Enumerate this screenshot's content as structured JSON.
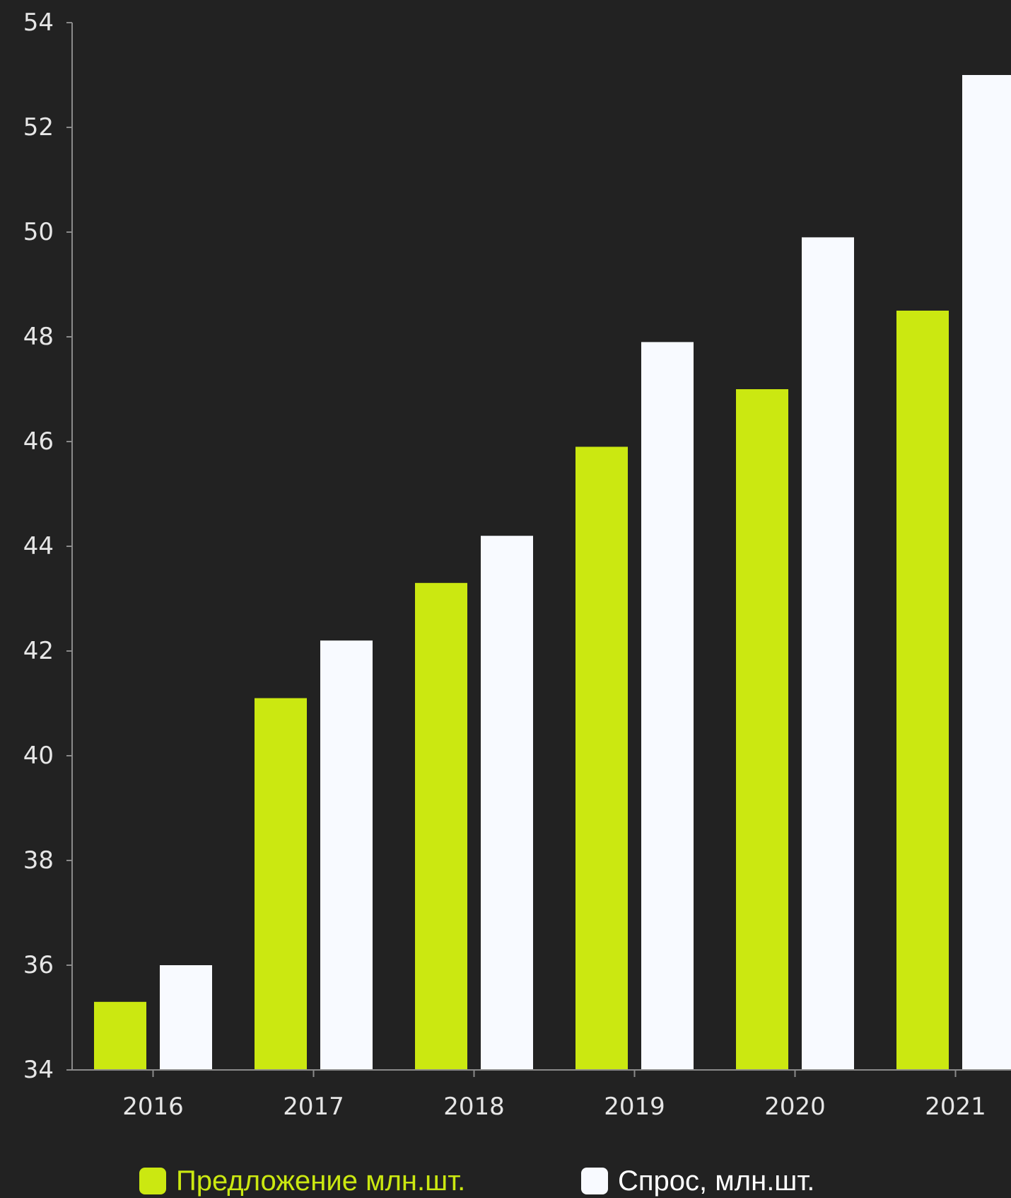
{
  "colors": {
    "background": "#222222",
    "supply": "#cbe811",
    "demand": "#f8faff",
    "axis": "#8a8a8a",
    "text": "#e6e6e6"
  },
  "chart_data": {
    "type": "bar",
    "title": "",
    "xlabel": "",
    "ylabel": "",
    "ylim": [
      34,
      54
    ],
    "yticks": [
      "54",
      "52",
      "50",
      "48",
      "46",
      "44",
      "42",
      "40",
      "38",
      "36",
      "34"
    ],
    "categories": [
      "2016",
      "2017",
      "2018",
      "2019",
      "2020",
      "2021"
    ],
    "series": [
      {
        "name": "Предложение млн.шт.",
        "color": "#cbe811",
        "values": [
          35.3,
          41.1,
          43.3,
          45.9,
          47.0,
          48.5
        ]
      },
      {
        "name": "Спрос, млн.шт.",
        "color": "#f8faff",
        "values": [
          36.0,
          42.2,
          44.2,
          47.9,
          49.9,
          53.0
        ]
      }
    ],
    "grid": false,
    "legend": "bottom"
  }
}
